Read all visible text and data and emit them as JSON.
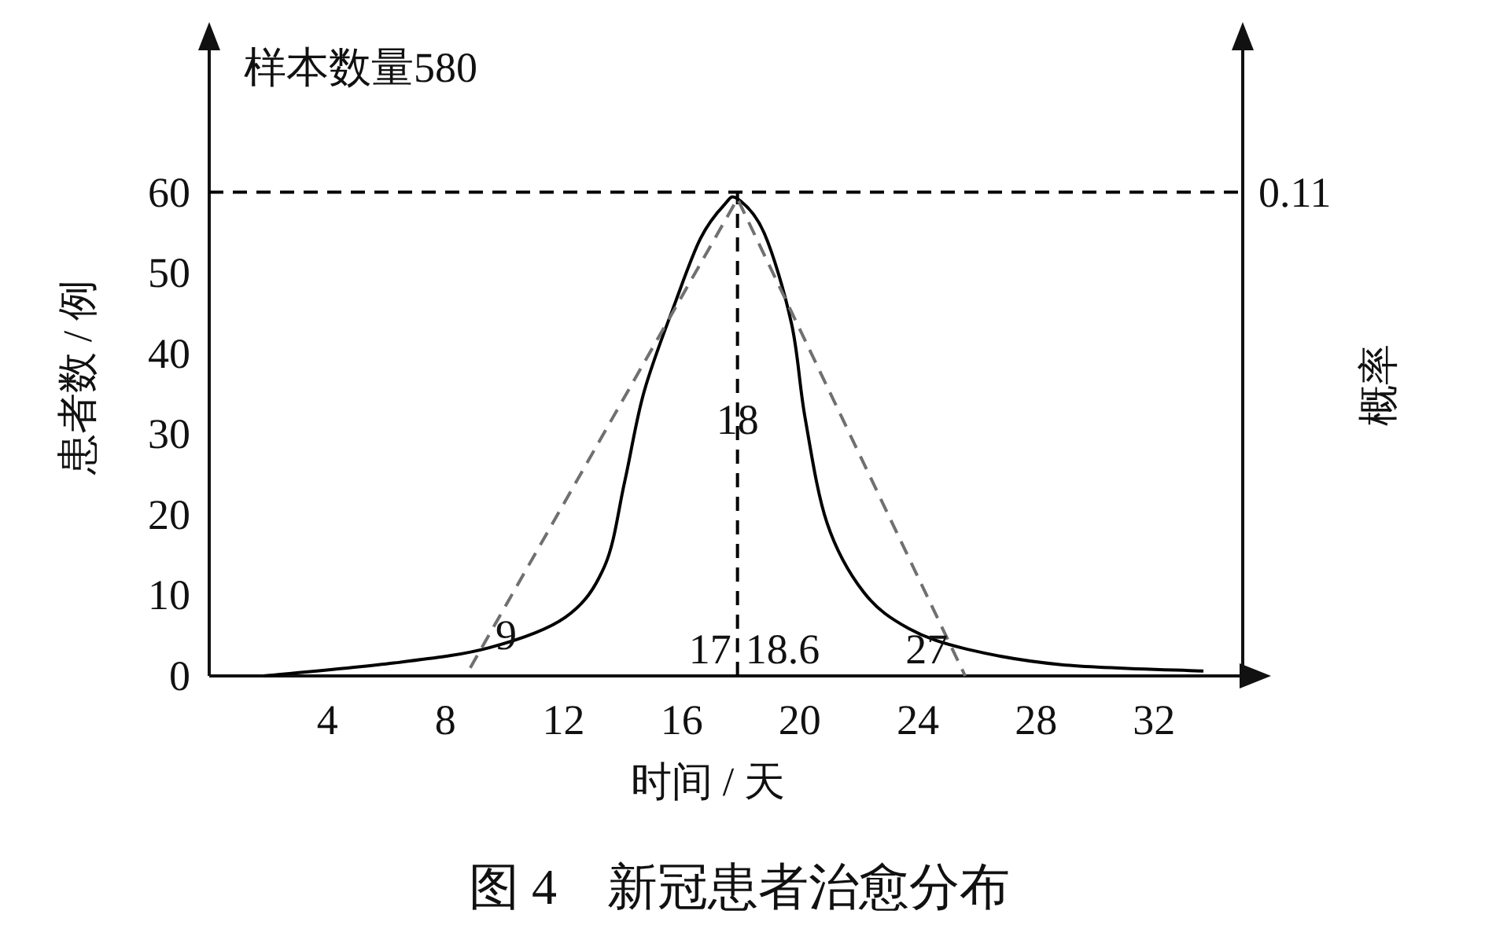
{
  "chart_data": {
    "type": "line",
    "title": "图 4　新冠患者治愈分布",
    "xlabel": "时间 / 天",
    "ylabel": "患者数 / 例",
    "y2label": "概率",
    "xlim": [
      0,
      35
    ],
    "ylim": [
      0,
      78
    ],
    "xticks": [
      4,
      8,
      12,
      16,
      20,
      24,
      28,
      32
    ],
    "yticks": [
      0,
      10,
      20,
      30,
      40,
      50,
      60
    ],
    "series": [
      {
        "color": "#000000",
        "line_style": "solid",
        "x": [
          1.85,
          6.25,
          9.48,
          12.07,
          13.4,
          14.07,
          14.73,
          15.8,
          16.64,
          17.43,
          17.89,
          18.8,
          19.72,
          20.18,
          20.92,
          22.16,
          23.68,
          25.68,
          28.86,
          33.67
        ],
        "values": [
          0,
          1.6,
          3.5,
          7.3,
          13.7,
          24.1,
          35.3,
          46.5,
          54.3,
          58.4,
          59.2,
          54.9,
          43.7,
          32,
          19,
          10.4,
          5.9,
          3.3,
          1.4,
          0.6
        ]
      },
      {
        "color": "#707070",
        "line_style": "dashed",
        "x": [
          8.84,
          17.89,
          25.6
        ],
        "values": [
          1,
          59.2,
          0
        ]
      }
    ],
    "ref_lines": [
      {
        "axis": "y",
        "value": 60,
        "line_style": "dashed",
        "color": "#000000"
      },
      {
        "axis": "x",
        "value": 17.89,
        "label": "18",
        "line_style": "dashed",
        "color": "#000000"
      }
    ],
    "annotations": [
      "样本数量580",
      "0.11",
      {
        "text": "9",
        "x": 8.84,
        "y": 1
      },
      "17",
      "18.6",
      "27"
    ]
  }
}
